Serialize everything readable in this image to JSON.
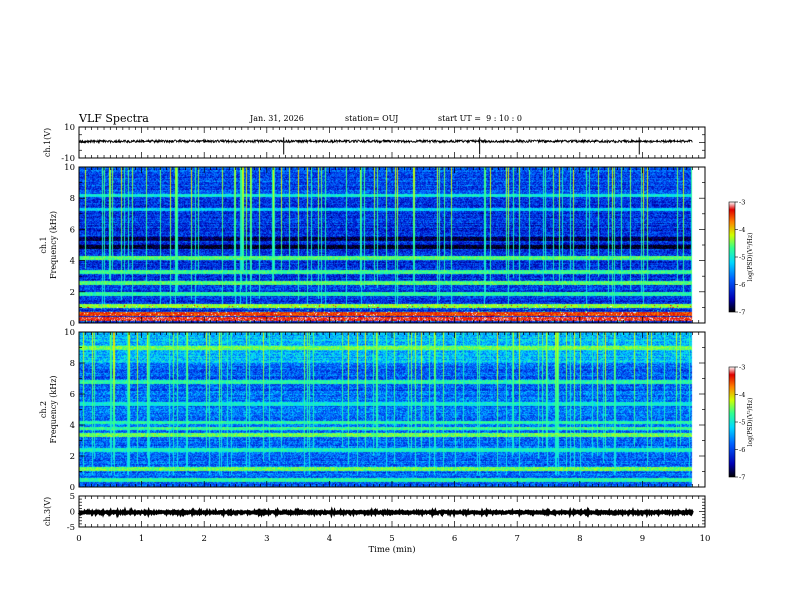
{
  "header": {
    "title": "VLF Spectra",
    "date": "Jan. 31, 2026",
    "station": "station= OUJ",
    "start_ut": "start UT =  9 : 10 : 0"
  },
  "colors": {
    "spectrogram_background": "#1b2fa8",
    "waveform": "#000000",
    "colormap": [
      "#000000",
      "#0000b4",
      "#0060ff",
      "#00d8ff",
      "#30ff90",
      "#d0ff00",
      "#ff8000",
      "#e00000",
      "#ffffff"
    ]
  },
  "chart_data": [
    {
      "type": "line",
      "panel": "ch1-waveform",
      "ylabel": "ch.1(V)",
      "ylim": [
        -10,
        10
      ],
      "yticks": [
        "10",
        "-10"
      ],
      "xlim": [
        0,
        10
      ],
      "baseline_value": 0.8,
      "noise_amplitude": 0.8,
      "spike_times": [
        3.27,
        6.4,
        8.95
      ]
    },
    {
      "type": "heatmap",
      "panel": "ch1-spectrogram",
      "ylabel": "ch.1\nFrequency (kHz)",
      "ylim": [
        0,
        10
      ],
      "yticks": [
        "0",
        "2",
        "4",
        "6",
        "8",
        "10"
      ],
      "xlim": [
        0,
        10
      ],
      "data_end_time": 9.8,
      "colorbar": {
        "label": "log(PSD)(V²/Hz)",
        "range": [
          -7,
          -3
        ],
        "ticks": [
          "-3",
          "-4",
          "-5",
          "-6",
          "-7"
        ]
      },
      "bands": [
        {
          "freq": 0.3,
          "log_psd": -3.3
        },
        {
          "freq": 0.6,
          "log_psd": -3.5
        },
        {
          "freq": 1.1,
          "log_psd": -4.4
        },
        {
          "freq": 1.9,
          "log_psd": -4.8
        },
        {
          "freq": 2.6,
          "log_psd": -4.6
        },
        {
          "freq": 3.3,
          "log_psd": -4.7
        },
        {
          "freq": 4.2,
          "log_psd": -4.6
        },
        {
          "freq": 4.9,
          "log_psd": -6.9
        },
        {
          "freq": 5.4,
          "log_psd": -6.8
        },
        {
          "freq": 7.3,
          "log_psd": -5.2
        },
        {
          "freq": 8.2,
          "log_psd": -5.0
        }
      ]
    },
    {
      "type": "heatmap",
      "panel": "ch2-spectrogram",
      "ylabel": "ch.2\nFrequency (kHz)",
      "ylim": [
        0,
        10
      ],
      "yticks": [
        "0",
        "2",
        "4",
        "6",
        "8",
        "10"
      ],
      "xlim": [
        0,
        10
      ],
      "data_end_time": 9.8,
      "colorbar": {
        "label": "log(PSD)(V²/Hz)",
        "range": [
          -7,
          -3
        ],
        "ticks": [
          "-3",
          "-4",
          "-5",
          "-6",
          "-7"
        ]
      },
      "bands": [
        {
          "freq": 0.5,
          "log_psd": -4.8
        },
        {
          "freq": 1.2,
          "log_psd": -4.5
        },
        {
          "freq": 2.4,
          "log_psd": -4.9
        },
        {
          "freq": 3.4,
          "log_psd": -4.5
        },
        {
          "freq": 3.8,
          "log_psd": -4.7
        },
        {
          "freq": 4.2,
          "log_psd": -4.8
        },
        {
          "freq": 5.4,
          "log_psd": -5.0
        },
        {
          "freq": 6.8,
          "log_psd": -4.8
        },
        {
          "freq": 9.0,
          "log_psd": -4.5
        }
      ]
    },
    {
      "type": "line",
      "panel": "ch3-waveform",
      "ylabel": "ch.3(V)",
      "ylim": [
        -5,
        5
      ],
      "yticks": [
        "5",
        "0",
        "-5"
      ],
      "xlim": [
        0,
        10
      ],
      "xlabel": "Time (min)",
      "xticks": [
        "0",
        "1",
        "2",
        "3",
        "4",
        "5",
        "6",
        "7",
        "8",
        "9",
        "10"
      ],
      "baseline_value": -0.3,
      "noise_amplitude": 0.25
    }
  ]
}
